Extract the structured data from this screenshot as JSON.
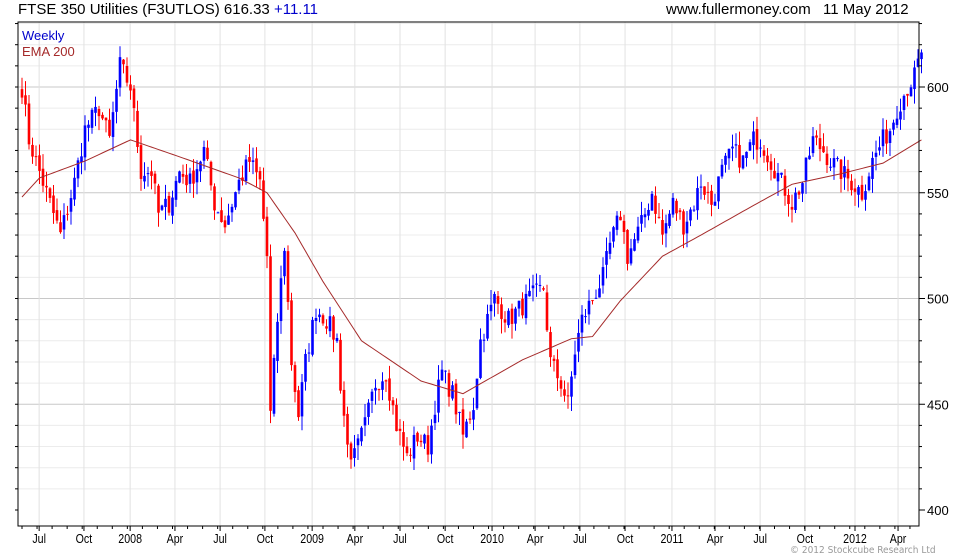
{
  "header": {
    "index_name": "FTSE 350 Utilities (F3UTLOS)",
    "last": "616.33",
    "change": "+11.11",
    "site": "www.fullermoney.com",
    "date": "11 May 2012"
  },
  "copyright": "© 2012 Stockcube Research Ltd",
  "colors": {
    "up": "#0000ff",
    "down": "#ff0000",
    "ema": "#a52a2a",
    "grid": "#dcdcdc",
    "weekly_label": "#0000cc"
  },
  "chart_data": {
    "type": "candlestick",
    "title": "FTSE 350 Utilities (F3UTLOS) 616.33 +11.11",
    "legend": [
      "Weekly",
      "EMA 200"
    ],
    "legend_position": "top-left",
    "ylim": [
      397,
      637
    ],
    "y_ticks": [
      400,
      450,
      500,
      550,
      600
    ],
    "y_axis_side": "right",
    "grid": true,
    "weeks": 258,
    "x_ticks": [
      {
        "label": "Jul",
        "week": 4.9
      },
      {
        "label": "Oct",
        "week": 17.7
      },
      {
        "label": "2008",
        "week": 30.9
      },
      {
        "label": "Apr",
        "week": 43.7
      },
      {
        "label": "Jul",
        "week": 56.6
      },
      {
        "label": "Oct",
        "week": 69.4
      },
      {
        "label": "2009",
        "week": 82.9
      },
      {
        "label": "Apr",
        "week": 95.1
      },
      {
        "label": "Jul",
        "week": 108
      },
      {
        "label": "Oct",
        "week": 120.9
      },
      {
        "label": "2010",
        "week": 134.3
      },
      {
        "label": "Apr",
        "week": 146.6
      },
      {
        "label": "Jul",
        "week": 159.4
      },
      {
        "label": "Oct",
        "week": 172.3
      },
      {
        "label": "2011",
        "week": 185.7
      },
      {
        "label": "Apr",
        "week": 198
      },
      {
        "label": "Jul",
        "week": 210.9
      },
      {
        "label": "Oct",
        "week": 223.7
      },
      {
        "label": "2012",
        "week": 238
      },
      {
        "label": "Apr",
        "week": 250.3
      }
    ],
    "weekly_close_keypoints": [
      [
        0,
        600
      ],
      [
        2,
        575
      ],
      [
        5,
        560
      ],
      [
        8,
        545
      ],
      [
        11,
        530
      ],
      [
        15,
        555
      ],
      [
        18,
        580
      ],
      [
        22,
        590
      ],
      [
        25,
        575
      ],
      [
        28,
        610
      ],
      [
        31,
        600
      ],
      [
        34,
        560
      ],
      [
        37,
        560
      ],
      [
        39,
        540
      ],
      [
        42,
        545
      ],
      [
        45,
        560
      ],
      [
        48,
        555
      ],
      [
        52,
        570
      ],
      [
        55,
        545
      ],
      [
        58,
        535
      ],
      [
        62,
        555
      ],
      [
        65,
        565
      ],
      [
        68,
        555
      ],
      [
        70,
        520
      ],
      [
        71,
        445
      ],
      [
        73,
        490
      ],
      [
        75,
        525
      ],
      [
        77,
        470
      ],
      [
        79,
        445
      ],
      [
        81,
        470
      ],
      [
        84,
        495
      ],
      [
        87,
        490
      ],
      [
        90,
        480
      ],
      [
        91,
        460
      ],
      [
        93,
        430
      ],
      [
        95,
        425
      ],
      [
        98,
        440
      ],
      [
        101,
        460
      ],
      [
        104,
        465
      ],
      [
        107,
        440
      ],
      [
        110,
        425
      ],
      [
        113,
        435
      ],
      [
        116,
        430
      ],
      [
        118,
        450
      ],
      [
        120,
        465
      ],
      [
        123,
        455
      ],
      [
        126,
        435
      ],
      [
        129,
        450
      ],
      [
        131,
        480
      ],
      [
        135,
        500
      ],
      [
        139,
        490
      ],
      [
        142,
        495
      ],
      [
        145,
        500
      ],
      [
        149,
        505
      ],
      [
        151,
        470
      ],
      [
        154,
        460
      ],
      [
        156,
        450
      ],
      [
        158,
        475
      ],
      [
        160,
        490
      ],
      [
        163,
        500
      ],
      [
        166,
        510
      ],
      [
        168,
        525
      ],
      [
        171,
        540
      ],
      [
        173,
        520
      ],
      [
        177,
        535
      ],
      [
        180,
        550
      ],
      [
        183,
        530
      ],
      [
        186,
        545
      ],
      [
        189,
        535
      ],
      [
        192,
        545
      ],
      [
        194,
        555
      ],
      [
        197,
        545
      ],
      [
        200,
        560
      ],
      [
        203,
        570
      ],
      [
        206,
        565
      ],
      [
        209,
        575
      ],
      [
        211,
        575
      ],
      [
        214,
        565
      ],
      [
        217,
        555
      ],
      [
        220,
        545
      ],
      [
        223,
        555
      ],
      [
        226,
        575
      ],
      [
        229,
        570
      ],
      [
        231,
        565
      ],
      [
        234,
        560
      ],
      [
        237,
        555
      ],
      [
        240,
        550
      ],
      [
        243,
        565
      ],
      [
        246,
        575
      ],
      [
        248,
        580
      ],
      [
        250,
        590
      ],
      [
        253,
        600
      ],
      [
        255,
        605
      ],
      [
        257,
        616.33
      ]
    ],
    "ema200_keypoints": [
      [
        0,
        548
      ],
      [
        5,
        557
      ],
      [
        18,
        565
      ],
      [
        31,
        575
      ],
      [
        45,
        567
      ],
      [
        62,
        557
      ],
      [
        70,
        550
      ],
      [
        78,
        531
      ],
      [
        86,
        508
      ],
      [
        97,
        480
      ],
      [
        114,
        461
      ],
      [
        126,
        455
      ],
      [
        143,
        471
      ],
      [
        157,
        481
      ],
      [
        163,
        482
      ],
      [
        171,
        499
      ],
      [
        183,
        520
      ],
      [
        194,
        530
      ],
      [
        209,
        544
      ],
      [
        220,
        554
      ],
      [
        234,
        559
      ],
      [
        246,
        564
      ],
      [
        257,
        575
      ]
    ]
  }
}
